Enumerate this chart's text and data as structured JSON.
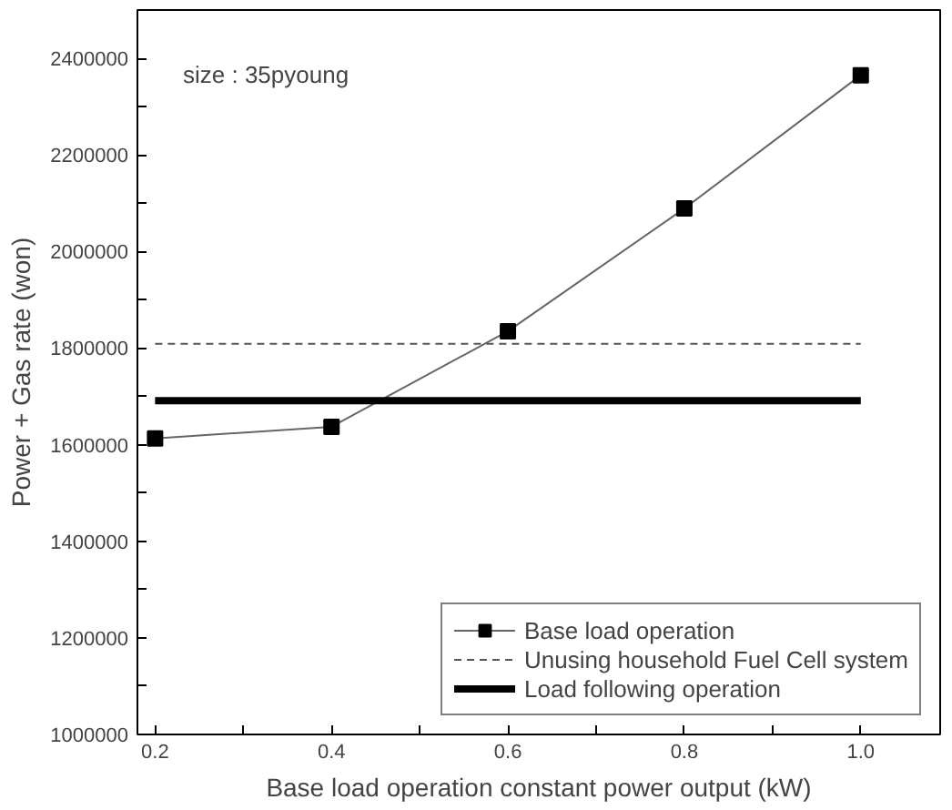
{
  "chart_data": {
    "type": "line",
    "xlabel": "Base load operation constant power output (kW)",
    "ylabel": "Power + Gas rate (won)",
    "annotations": [
      "size : 35pyoung"
    ],
    "xlim": [
      0.18,
      1.09
    ],
    "ylim": [
      1000000,
      2500000
    ],
    "xticks": [
      {
        "value": 0.2,
        "label": "0.2"
      },
      {
        "value": 0.3,
        "label": null
      },
      {
        "value": 0.4,
        "label": "0.4"
      },
      {
        "value": 0.5,
        "label": null
      },
      {
        "value": 0.6,
        "label": "0.6"
      },
      {
        "value": 0.7,
        "label": null
      },
      {
        "value": 0.8,
        "label": "0.8"
      },
      {
        "value": 0.9,
        "label": null
      },
      {
        "value": 1.0,
        "label": "1.0"
      }
    ],
    "yticks": [
      1000000,
      {
        "value": 1100000,
        "label": null
      },
      1200000,
      {
        "value": 1300000,
        "label": null
      },
      1400000,
      {
        "value": 1500000,
        "label": null
      },
      1600000,
      {
        "value": 1700000,
        "label": null
      },
      1800000,
      {
        "value": 1900000,
        "label": null
      },
      2000000,
      {
        "value": 2100000,
        "label": null
      },
      2200000,
      {
        "value": 2300000,
        "label": null
      },
      2400000
    ],
    "grid": false,
    "legend": "bottom right",
    "series": [
      {
        "name": "Base load operation",
        "color": "#000000",
        "x": [
          0.2,
          0.4,
          0.6,
          0.8,
          1.0
        ],
        "values": [
          1613000,
          1637000,
          1835000,
          2089000,
          2365000
        ],
        "marker": "square",
        "line_style": "solid"
      },
      {
        "name": "Unusing household Fuel Cell system",
        "color": "#555555",
        "x": [
          0.2,
          1.0
        ],
        "values": [
          1809000,
          1809000
        ],
        "marker": "none",
        "line_style": "dashed"
      },
      {
        "name": "Load following operation",
        "color": "#000000",
        "x": [
          0.2,
          1.0
        ],
        "values": [
          1691000,
          1691000
        ],
        "marker": "none",
        "line_style": "solid"
      }
    ]
  }
}
